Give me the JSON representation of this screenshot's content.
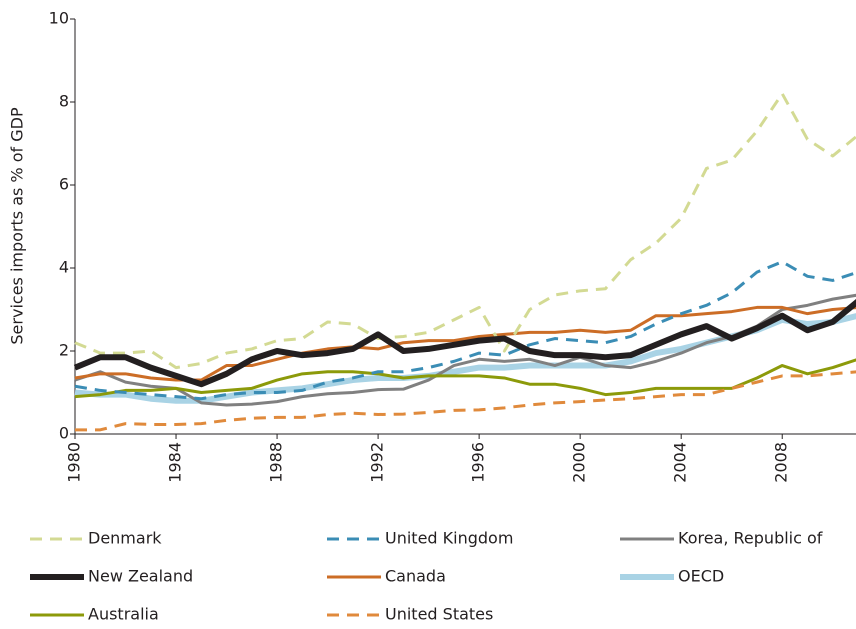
{
  "chart_data": {
    "type": "line",
    "y_label": "Services imports as % of GDP",
    "x": [
      1980,
      1981,
      1982,
      1983,
      1984,
      1985,
      1986,
      1987,
      1988,
      1989,
      1990,
      1991,
      1992,
      1993,
      1994,
      1995,
      1996,
      1997,
      1998,
      1999,
      2000,
      2001,
      2002,
      2003,
      2004,
      2005,
      2006,
      2007,
      2008,
      2009,
      2010,
      2011
    ],
    "xlim": [
      1980,
      2011
    ],
    "xticks": [
      1980,
      1984,
      1988,
      1992,
      1996,
      2000,
      2004,
      2008
    ],
    "ylim": [
      0,
      10
    ],
    "yticks": [
      0,
      2,
      4,
      6,
      8,
      10
    ],
    "grid": false,
    "legend": "bottom",
    "series": [
      {
        "name": "Denmark",
        "color": "#d3da93",
        "dash": true,
        "values": [
          2.2,
          1.95,
          1.95,
          2.0,
          1.6,
          1.7,
          1.95,
          2.05,
          2.25,
          2.3,
          2.7,
          2.65,
          2.3,
          2.35,
          2.45,
          2.75,
          3.05,
          2.0,
          3.0,
          3.35,
          3.45,
          3.5,
          4.2,
          4.6,
          5.2,
          6.4,
          6.6,
          7.3,
          8.2,
          7.1,
          6.7,
          7.2
        ]
      },
      {
        "name": "United Kingdom",
        "color": "#3b8db5",
        "dash": true,
        "values": [
          1.15,
          1.05,
          1.0,
          0.95,
          0.9,
          0.85,
          0.95,
          1.0,
          1.0,
          1.05,
          1.25,
          1.35,
          1.5,
          1.5,
          1.6,
          1.75,
          1.95,
          1.9,
          2.15,
          2.3,
          2.25,
          2.2,
          2.35,
          2.65,
          2.9,
          3.1,
          3.4,
          3.9,
          4.15,
          3.8,
          3.7,
          3.9
        ]
      },
      {
        "name": "Korea, Republic of",
        "color": "#808080",
        "dash": false,
        "values": [
          1.3,
          1.5,
          1.25,
          1.15,
          1.1,
          0.75,
          0.7,
          0.72,
          0.78,
          0.9,
          0.97,
          1.0,
          1.07,
          1.08,
          1.3,
          1.65,
          1.8,
          1.75,
          1.8,
          1.65,
          1.85,
          1.65,
          1.6,
          1.75,
          1.95,
          2.2,
          2.35,
          2.6,
          3.0,
          3.1,
          3.25,
          3.35
        ]
      },
      {
        "name": "New Zealand",
        "color": "#231f20",
        "dash": false,
        "values": [
          1.6,
          1.85,
          1.85,
          1.6,
          1.4,
          1.2,
          1.45,
          1.8,
          2.0,
          1.9,
          1.95,
          2.05,
          2.4,
          2.0,
          2.05,
          2.15,
          2.25,
          2.3,
          2.0,
          1.9,
          1.9,
          1.85,
          1.9,
          2.15,
          2.4,
          2.6,
          2.3,
          2.55,
          2.85,
          2.5,
          2.7,
          3.2
        ]
      },
      {
        "name": "Canada",
        "color": "#cc6d26",
        "dash": false,
        "values": [
          1.35,
          1.45,
          1.45,
          1.35,
          1.3,
          1.3,
          1.65,
          1.65,
          1.8,
          1.95,
          2.05,
          2.1,
          2.05,
          2.2,
          2.25,
          2.25,
          2.35,
          2.4,
          2.45,
          2.45,
          2.5,
          2.45,
          2.5,
          2.85,
          2.85,
          2.9,
          2.95,
          3.05,
          3.05,
          2.9,
          3.0,
          3.05
        ]
      },
      {
        "name": "OECD",
        "color": "#a9d3e5",
        "dash": false,
        "values": [
          1.0,
          0.95,
          0.95,
          0.85,
          0.8,
          0.8,
          0.9,
          1.0,
          1.05,
          1.1,
          1.2,
          1.3,
          1.35,
          1.35,
          1.4,
          1.5,
          1.6,
          1.6,
          1.65,
          1.65,
          1.65,
          1.65,
          1.75,
          1.95,
          2.05,
          2.2,
          2.35,
          2.5,
          2.75,
          2.65,
          2.7,
          2.85
        ]
      },
      {
        "name": "Australia",
        "color": "#8c9a0a",
        "dash": false,
        "values": [
          0.9,
          0.95,
          1.05,
          1.05,
          1.1,
          1.0,
          1.05,
          1.1,
          1.3,
          1.45,
          1.5,
          1.5,
          1.45,
          1.35,
          1.4,
          1.4,
          1.4,
          1.35,
          1.2,
          1.2,
          1.1,
          0.95,
          1.0,
          1.1,
          1.1,
          1.1,
          1.1,
          1.35,
          1.65,
          1.45,
          1.6,
          1.8
        ]
      },
      {
        "name": "United States",
        "color": "#e08a3c",
        "dash": true,
        "values": [
          0.1,
          0.1,
          0.25,
          0.23,
          0.23,
          0.25,
          0.33,
          0.38,
          0.4,
          0.4,
          0.47,
          0.5,
          0.47,
          0.48,
          0.52,
          0.57,
          0.58,
          0.63,
          0.7,
          0.75,
          0.78,
          0.82,
          0.85,
          0.9,
          0.95,
          0.95,
          1.1,
          1.25,
          1.4,
          1.4,
          1.45,
          1.5
        ]
      }
    ]
  }
}
